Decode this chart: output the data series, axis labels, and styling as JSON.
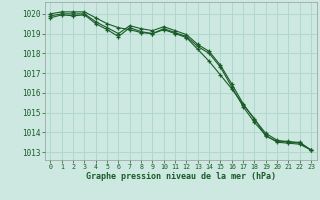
{
  "background_color": "#cce8e0",
  "grid_color": "#b0d8cc",
  "line_color": "#1a5c28",
  "marker": "+",
  "xlabel": "Graphe pression niveau de la mer (hPa)",
  "ylim": [
    1012.6,
    1020.6
  ],
  "xlim": [
    -0.5,
    23.5
  ],
  "yticks": [
    1013,
    1014,
    1015,
    1016,
    1017,
    1018,
    1019,
    1020
  ],
  "xticks": [
    0,
    1,
    2,
    3,
    4,
    5,
    6,
    7,
    8,
    9,
    10,
    11,
    12,
    13,
    14,
    15,
    16,
    17,
    18,
    19,
    20,
    21,
    22,
    23
  ],
  "series": [
    [
      1020.0,
      1020.1,
      1020.1,
      1020.1,
      1019.8,
      1019.5,
      1019.3,
      1019.2,
      1019.05,
      1019.0,
      1019.2,
      1019.0,
      1018.8,
      1018.2,
      1017.6,
      1016.9,
      1016.2,
      1015.4,
      1014.7,
      1013.8,
      1013.55,
      1013.55,
      1013.45,
      1013.1
    ],
    [
      1019.9,
      1020.0,
      1020.0,
      1020.0,
      1019.6,
      1019.3,
      1019.0,
      1019.4,
      1019.25,
      1019.15,
      1019.35,
      1019.15,
      1018.95,
      1018.45,
      1018.1,
      1017.4,
      1016.45,
      1015.45,
      1014.65,
      1013.95,
      1013.6,
      1013.5,
      1013.5,
      1013.1
    ],
    [
      1019.8,
      1019.95,
      1019.9,
      1019.95,
      1019.5,
      1019.2,
      1018.85,
      1019.3,
      1019.1,
      1019.0,
      1019.25,
      1019.05,
      1018.85,
      1018.35,
      1018.0,
      1017.3,
      1016.3,
      1015.3,
      1014.5,
      1013.85,
      1013.5,
      1013.45,
      1013.4,
      1013.1
    ]
  ]
}
